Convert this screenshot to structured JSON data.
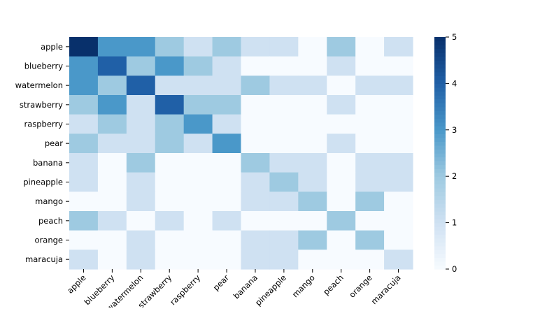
{
  "chart_data": {
    "type": "heatmap",
    "title": "",
    "xlabel": "",
    "ylabel": "",
    "rows": [
      "apple",
      "blueberry",
      "watermelon",
      "strawberry",
      "raspberry",
      "pear",
      "banana",
      "pineapple",
      "mango",
      "peach",
      "orange",
      "maracuja"
    ],
    "columns": [
      "apple",
      "blueberry",
      "watermelon",
      "strawberry",
      "raspberry",
      "pear",
      "banana",
      "pineapple",
      "mango",
      "peach",
      "orange",
      "maracuja"
    ],
    "values": [
      [
        5,
        3,
        3,
        2,
        1,
        2,
        1,
        1,
        0,
        2,
        0,
        1
      ],
      [
        3,
        4,
        2,
        3,
        2,
        1,
        0,
        0,
        0,
        1,
        0,
        0
      ],
      [
        3,
        2,
        4,
        1,
        1,
        1,
        2,
        1,
        1,
        0,
        1,
        1
      ],
      [
        2,
        3,
        1,
        4,
        2,
        2,
        0,
        0,
        0,
        1,
        0,
        0
      ],
      [
        1,
        2,
        1,
        2,
        3,
        1,
        0,
        0,
        0,
        0,
        0,
        0
      ],
      [
        2,
        1,
        1,
        2,
        1,
        3,
        0,
        0,
        0,
        1,
        0,
        0
      ],
      [
        1,
        0,
        2,
        0,
        0,
        0,
        2,
        1,
        1,
        0,
        1,
        1
      ],
      [
        1,
        0,
        1,
        0,
        0,
        0,
        1,
        2,
        1,
        0,
        1,
        1
      ],
      [
        0,
        0,
        1,
        0,
        0,
        0,
        1,
        1,
        2,
        0,
        2,
        0
      ],
      [
        2,
        1,
        0,
        1,
        0,
        1,
        0,
        0,
        0,
        2,
        0,
        0
      ],
      [
        0,
        0,
        1,
        0,
        0,
        0,
        1,
        1,
        2,
        0,
        2,
        0
      ],
      [
        1,
        0,
        1,
        0,
        0,
        0,
        1,
        1,
        0,
        0,
        0,
        1
      ]
    ],
    "colorbar": {
      "min": 0,
      "max": 5,
      "ticks": [
        0,
        1,
        2,
        3,
        4,
        5
      ],
      "palette": [
        "#f7fbff",
        "#cfe1f2",
        "#9ecae1",
        "#4a98c9",
        "#2060a7",
        "#08306b"
      ]
    },
    "x_tick_rotation": "45 degrees"
  }
}
